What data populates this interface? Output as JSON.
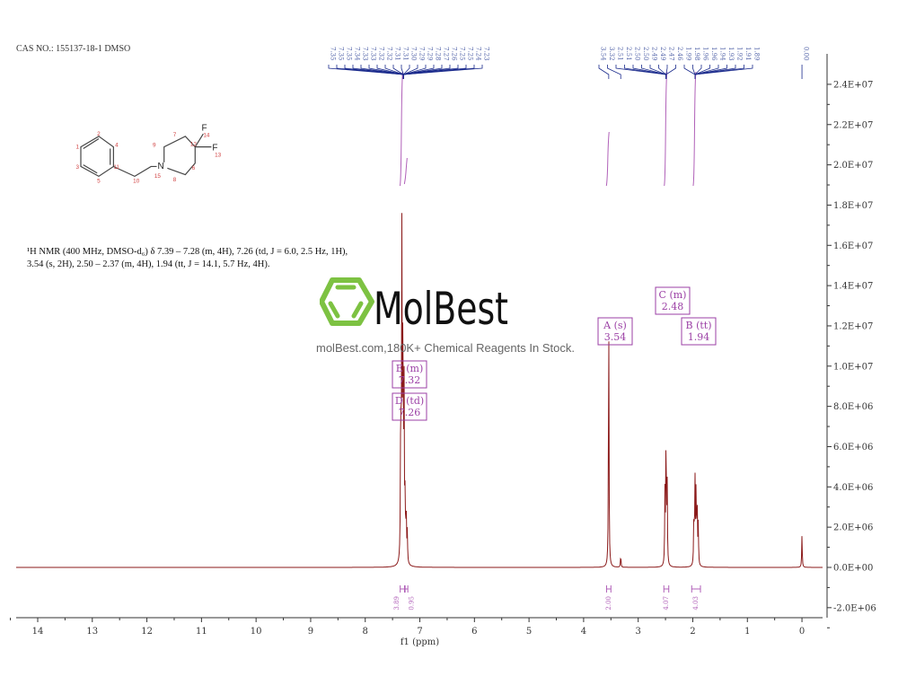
{
  "header": {
    "cas": "CAS NO.: 155137-18-1 DMSO"
  },
  "description": {
    "line1": "¹H NMR (400 MHz, DMSO-d₆) δ 7.39 – 7.28 (m, 4H), 7.26 (td, J = 6.0, 2.5 Hz, 1H),",
    "line2": "3.54 (s, 2H), 2.50 – 2.37 (m, 4H), 1.94 (tt, J = 14.1, 5.7 Hz, 4H)."
  },
  "watermark": {
    "logo_text": "MolBest",
    "subtitle": "molBest.com,180K+ Chemical Reagents In Stock.",
    "logo_color": "#7dc242"
  },
  "molecule": {
    "atom_labels": [
      "1",
      "2",
      "3",
      "4",
      "5",
      "6",
      "7",
      "8",
      "9",
      "10",
      "11",
      "12",
      "13",
      "14",
      "15"
    ],
    "elements": {
      "N": "N",
      "F1": "F",
      "F2": "F"
    }
  },
  "chart_data": {
    "type": "line",
    "title": "",
    "xlabel": "f1 (ppm)",
    "ylabel": "",
    "xlim": [
      14.4,
      -0.4
    ],
    "ylim": [
      -2500000.0,
      25000000.0
    ],
    "x_reversed": true,
    "x_ticks": [
      "14",
      "13",
      "12",
      "11",
      "10",
      "9",
      "8",
      "7",
      "6",
      "5",
      "4",
      "3",
      "2",
      "1",
      "0"
    ],
    "y_ticks": [
      "2.4E+07",
      "2.2E+07",
      "2.0E+07",
      "1.8E+07",
      "1.6E+07",
      "1.4E+07",
      "1.2E+07",
      "1.0E+07",
      "8.0E+06",
      "6.0E+06",
      "4.0E+06",
      "2.0E+06",
      "0.0E+00",
      "-2.0E+06"
    ],
    "y_tick_values": [
      24000000.0,
      22000000.0,
      20000000.0,
      18000000.0,
      16000000.0,
      14000000.0,
      12000000.0,
      10000000.0,
      8000000.0,
      6000000.0,
      4000000.0,
      2000000.0,
      0,
      -2000000.0
    ],
    "colors": {
      "spectrum": "#8b1a1a",
      "integral": "#b060b8",
      "peak_labels": "#1a2a8c",
      "multiplet_box": "#9b3fa5"
    },
    "peaks": [
      {
        "ppm": 7.35,
        "intensity": 8000000.0
      },
      {
        "ppm": 7.33,
        "intensity": 15800000.0
      },
      {
        "ppm": 7.31,
        "intensity": 12000000.0
      },
      {
        "ppm": 7.29,
        "intensity": 9000000.0
      },
      {
        "ppm": 7.27,
        "intensity": 3000000.0
      },
      {
        "ppm": 7.25,
        "intensity": 2500000.0
      },
      {
        "ppm": 7.23,
        "intensity": 1500000.0
      },
      {
        "ppm": 3.54,
        "intensity": 12800000.0
      },
      {
        "ppm": 3.32,
        "intensity": 600000.0
      },
      {
        "ppm": 2.51,
        "intensity": 3500000.0
      },
      {
        "ppm": 2.49,
        "intensity": 6600000.0
      },
      {
        "ppm": 2.47,
        "intensity": 4200000.0
      },
      {
        "ppm": 1.98,
        "intensity": 2600000.0
      },
      {
        "ppm": 1.96,
        "intensity": 4300000.0
      },
      {
        "ppm": 1.94,
        "intensity": 3800000.0
      },
      {
        "ppm": 1.92,
        "intensity": 3000000.0
      },
      {
        "ppm": 1.9,
        "intensity": 2000000.0
      },
      {
        "ppm": 0.0,
        "intensity": 1600000.0
      }
    ],
    "peak_labels_group1": [
      "7.35",
      "7.35",
      "7.35",
      "7.34",
      "7.33",
      "7.33",
      "7.32",
      "7.32",
      "7.31",
      "7.31",
      "7.30",
      "7.29",
      "7.29",
      "7.28",
      "7.27",
      "7.26",
      "7.25",
      "7.25",
      "7.24",
      "7.23"
    ],
    "peak_labels_group2": [
      "3.54",
      "3.32",
      "2.51",
      "2.51",
      "2.50",
      "2.50",
      "2.49",
      "2.49",
      "2.47",
      "2.46",
      "1.99",
      "1.98",
      "1.96",
      "1.96",
      "1.94",
      "1.93",
      "1.92",
      "1.91",
      "1.89"
    ],
    "peak_label_tms": "0.00",
    "multiplets": [
      {
        "label": "E (m)",
        "shift": "7.32",
        "ppm": 7.32
      },
      {
        "label": "D (td)",
        "shift": "7.26",
        "ppm": 7.26
      },
      {
        "label": "A (s)",
        "shift": "3.54",
        "ppm": 3.54
      },
      {
        "label": "C (m)",
        "shift": "2.48",
        "ppm": 2.48
      },
      {
        "label": "B (tt)",
        "shift": "1.94",
        "ppm": 1.94
      }
    ],
    "integrals": [
      {
        "from": 7.36,
        "to": 7.28,
        "value": "3.89"
      },
      {
        "from": 7.27,
        "to": 7.22,
        "value": "0.95"
      },
      {
        "from": 3.58,
        "to": 3.5,
        "value": "2.00"
      },
      {
        "from": 2.53,
        "to": 2.44,
        "value": "4.07"
      },
      {
        "from": 2.02,
        "to": 1.86,
        "value": "4.03"
      }
    ]
  }
}
